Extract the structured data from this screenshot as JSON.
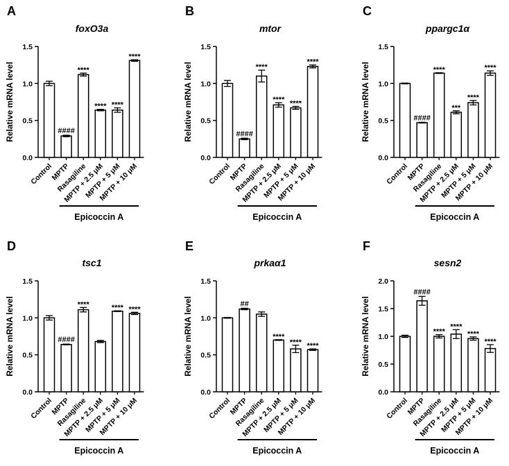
{
  "figure": {
    "group_label": "Epicoccin A",
    "ylabel": "Relative mRNA level"
  },
  "chart_data": [
    {
      "type": "bar",
      "panel": "A",
      "title": "foxO3a",
      "ylabel": "Relative mRNA level",
      "ylim": [
        0,
        1.5
      ],
      "yticks": [
        "0.0",
        "0.5",
        "1.0",
        "1.5"
      ],
      "categories": [
        "Control",
        "MPTP",
        "Rasagiline",
        "MPTP + 2.5 μM",
        "MPTP + 5 μM",
        "MPTP + 10 μM"
      ],
      "values": [
        1.0,
        0.29,
        1.12,
        0.64,
        0.64,
        1.31
      ],
      "errors": [
        0.03,
        0.01,
        0.02,
        0.01,
        0.03,
        0.01
      ],
      "annotations": [
        "",
        "####",
        "****",
        "****",
        "****",
        "****"
      ],
      "group_label": "Epicoccin A"
    },
    {
      "type": "bar",
      "panel": "B",
      "title": "mtor",
      "ylabel": "Relative mRNA level",
      "ylim": [
        0,
        1.5
      ],
      "yticks": [
        "0.0",
        "0.5",
        "1.0",
        "1.5"
      ],
      "categories": [
        "Control",
        "MPTP",
        "Rasagiline",
        "MPTP + 2.5 μM",
        "MPTP + 5 μM",
        "MPTP + 10 μM"
      ],
      "values": [
        1.0,
        0.25,
        1.1,
        0.71,
        0.67,
        1.23
      ],
      "errors": [
        0.04,
        0.01,
        0.08,
        0.03,
        0.02,
        0.02
      ],
      "annotations": [
        "",
        "####",
        "****",
        "****",
        "****",
        "****"
      ],
      "group_label": "Epicoccin A"
    },
    {
      "type": "bar",
      "panel": "C",
      "title": "ppargc1α",
      "ylabel": "Relative mRNA level",
      "ylim": [
        0,
        1.5
      ],
      "yticks": [
        "0.0",
        "0.5",
        "1.0",
        "1.5"
      ],
      "categories": [
        "Control",
        "MPTP",
        "Rasagiline",
        "MPTP + 2.5 μM",
        "MPTP + 5 μM",
        "MPTP + 10 μM"
      ],
      "values": [
        1.0,
        0.47,
        1.14,
        0.61,
        0.74,
        1.14
      ],
      "errors": [
        0.005,
        0.005,
        0.005,
        0.02,
        0.03,
        0.03
      ],
      "annotations": [
        "",
        "####",
        "****",
        "***",
        "****",
        "****"
      ],
      "group_label": "Epicoccin A"
    },
    {
      "type": "bar",
      "panel": "D",
      "title": "tsc1",
      "ylabel": "Relative mRNA level",
      "ylim": [
        0,
        1.5
      ],
      "yticks": [
        "0.0",
        "0.5",
        "1.0",
        "1.5"
      ],
      "categories": [
        "Control",
        "MPTP",
        "Rasagiline",
        "MPTP + 2.5 μM",
        "MPTP + 5 μM",
        "MPTP + 10 μM"
      ],
      "values": [
        1.0,
        0.64,
        1.11,
        0.68,
        1.09,
        1.06
      ],
      "errors": [
        0.03,
        0.005,
        0.03,
        0.015,
        0.005,
        0.015
      ],
      "annotations": [
        "",
        "####",
        "****",
        "",
        "****",
        "****"
      ],
      "group_label": "Epicoccin A"
    },
    {
      "type": "bar",
      "panel": "E",
      "title": "prkaα1",
      "ylabel": "Relative mRNA level",
      "ylim": [
        0,
        1.5
      ],
      "yticks": [
        "0.0",
        "0.5",
        "1.0",
        "1.5"
      ],
      "categories": [
        "Control",
        "MPTP",
        "Rasagiline",
        "MPTP + 2.5 μM",
        "MPTP + 5 μM",
        "MPTP + 10 μM"
      ],
      "values": [
        1.0,
        1.12,
        1.05,
        0.7,
        0.58,
        0.57
      ],
      "errors": [
        0.005,
        0.01,
        0.03,
        0.005,
        0.05,
        0.01
      ],
      "annotations": [
        "",
        "##",
        "",
        "****",
        "****",
        "****"
      ],
      "group_label": "Epicoccin A"
    },
    {
      "type": "bar",
      "panel": "F",
      "title": "sesn2",
      "ylabel": "Relative mRNA level",
      "ylim": [
        0,
        2.0
      ],
      "yticks": [
        "0.0",
        "0.5",
        "1.0",
        "1.5",
        "2.0"
      ],
      "categories": [
        "Control",
        "MPTP",
        "Rasagiline",
        "MPTP + 2.5 μM",
        "MPTP + 5 μM",
        "MPTP + 10 μM"
      ],
      "values": [
        1.0,
        1.64,
        1.0,
        1.04,
        0.96,
        0.78
      ],
      "errors": [
        0.02,
        0.08,
        0.03,
        0.08,
        0.03,
        0.07
      ],
      "annotations": [
        "",
        "####",
        "****",
        "****",
        "****",
        "****"
      ],
      "group_label": "Epicoccin A"
    }
  ]
}
